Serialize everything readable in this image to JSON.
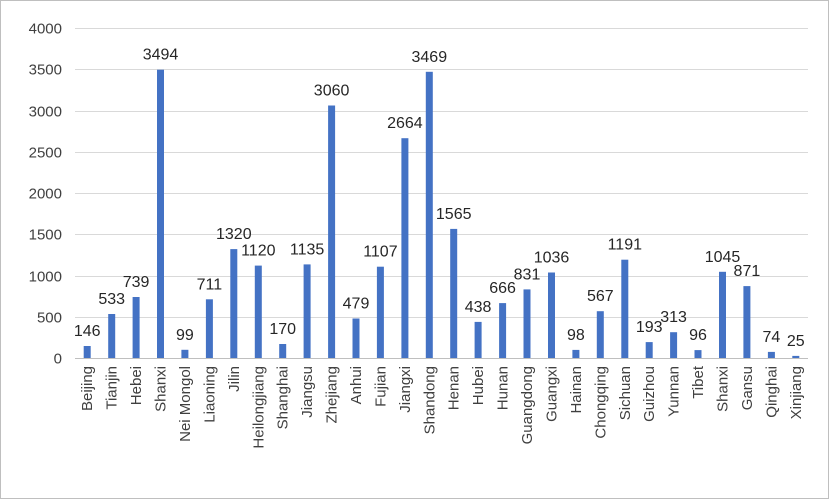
{
  "chart_data": {
    "type": "bar",
    "title": "",
    "xlabel": "",
    "ylabel": "",
    "ylim": [
      0,
      4000
    ],
    "yticks": [
      0,
      500,
      1000,
      1500,
      2000,
      2500,
      3000,
      3500,
      4000
    ],
    "grid": true,
    "legend": "none",
    "bar_color": "#4472c4",
    "categories": [
      "Beijing",
      "Tianjin",
      "Hebei",
      "Shanxi",
      "Nei Mongol",
      "Liaoning",
      "Jilin",
      "Heilongjiang",
      "Shanghai",
      "Jiangsu",
      "Zhejiang",
      "Anhui",
      "Fujian",
      "Jiangxi",
      "Shandong",
      "Henan",
      "Hubei",
      "Hunan",
      "Guangdong",
      "Guangxi",
      "Hainan",
      "Chongqing",
      "Sichuan",
      "Guizhou",
      "Yunnan",
      "Tibet",
      "Shanxi",
      "Gansu",
      "Qinghai",
      "Xinjiang"
    ],
    "values": [
      146,
      533,
      739,
      3494,
      99,
      711,
      1320,
      1120,
      170,
      1135,
      3060,
      479,
      1107,
      2664,
      3469,
      1565,
      438,
      666,
      831,
      1036,
      98,
      567,
      1191,
      193,
      313,
      96,
      1045,
      871,
      74,
      25
    ]
  }
}
